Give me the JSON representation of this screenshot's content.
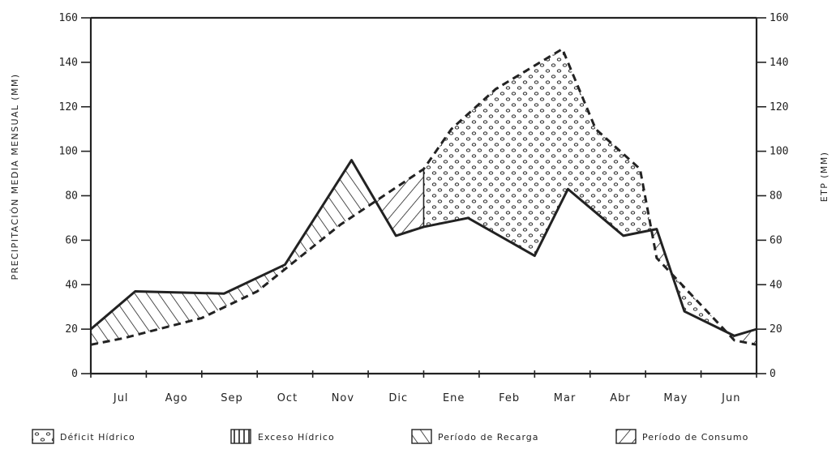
{
  "chart_data": {
    "type": "line",
    "ylabel_left": "PRECIPITACIÓN MEDIA MENSUAL (MM)",
    "ylabel_right": "ETP (MM)",
    "ylim": [
      0,
      160
    ],
    "yticks": [
      "0",
      "20",
      "40",
      "60",
      "80",
      "100",
      "120",
      "140",
      "160"
    ],
    "months": [
      "Jul",
      "Ago",
      "Sep",
      "Oct",
      "Nov",
      "Dic",
      "Ene",
      "Feb",
      "Mar",
      "Abr",
      "May",
      "Jun"
    ],
    "precipitation": {
      "x": [
        0,
        0.8,
        2.4,
        3.5,
        4.7,
        5.5,
        6.0,
        6.8,
        8.0,
        8.6,
        9.6,
        10.2,
        10.7,
        11.6,
        12.0
      ],
      "y": [
        20,
        37,
        36,
        49,
        96,
        62,
        66,
        70,
        53,
        83,
        62,
        65,
        28,
        17,
        20
      ]
    },
    "etp": {
      "x": [
        0,
        0.6,
        2.0,
        3.0,
        4.5,
        5.4,
        6.0,
        6.5,
        7.3,
        8.5,
        9.1,
        9.9,
        10.2,
        11.6,
        12.0
      ],
      "y": [
        13,
        16,
        25,
        37,
        67,
        82,
        92,
        110,
        128,
        146,
        110,
        92,
        52,
        15,
        13
      ]
    },
    "legend": [
      {
        "key": "deficit",
        "label": "Déficit Hídrico"
      },
      {
        "key": "exceso",
        "label": "Exceso Hídrico"
      },
      {
        "key": "recarga",
        "label": "Período de Recarga"
      },
      {
        "key": "consumo",
        "label": "Período de Consumo"
      }
    ]
  }
}
